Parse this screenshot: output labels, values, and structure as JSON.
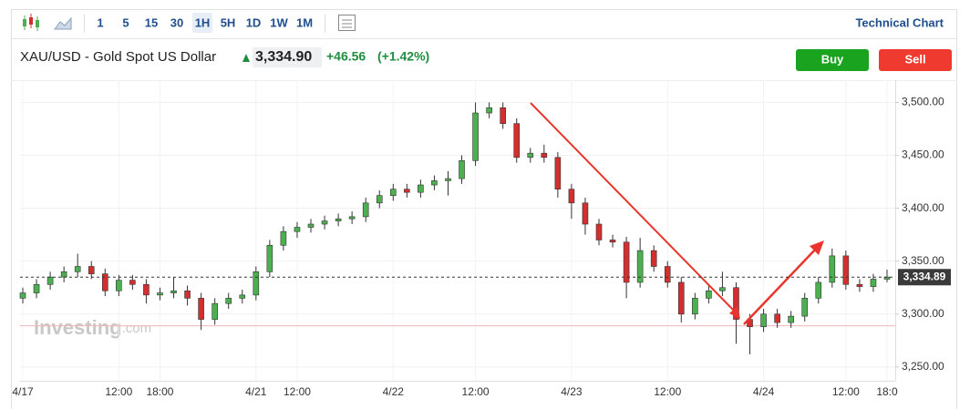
{
  "toolbar": {
    "intervals": [
      "1",
      "5",
      "15",
      "30",
      "1H",
      "5H",
      "1D",
      "1W",
      "1M"
    ],
    "active": "1H",
    "link": "Technical Chart"
  },
  "header": {
    "symbol": "XAU/USD - Gold Spot US Dollar",
    "price": "3,334.90",
    "change": "+46.56",
    "change_pct": "(+1.42%)"
  },
  "buttons": {
    "buy": "Buy",
    "sell": "Sell"
  },
  "watermark": {
    "brand": "Investing",
    "suffix": ".com"
  },
  "chart_data": {
    "type": "candlestick",
    "categories": [
      "4/17",
      null,
      null,
      null,
      null,
      null,
      null,
      "12:00",
      null,
      null,
      "18:00",
      null,
      null,
      null,
      null,
      null,
      null,
      "4/21",
      null,
      null,
      "12:00",
      null,
      null,
      null,
      null,
      null,
      null,
      "4/22",
      null,
      null,
      null,
      null,
      null,
      "12:00",
      null,
      null,
      null,
      null,
      null,
      null,
      "4/23",
      null,
      null,
      null,
      null,
      null,
      null,
      "12:00",
      null,
      null,
      null,
      null,
      null,
      null,
      "4/24",
      null,
      null,
      null,
      null,
      null,
      "12:00",
      null,
      null,
      "18:0"
    ],
    "open": [
      3315,
      3320,
      3328,
      3335,
      3340,
      3345,
      3338,
      3322,
      3332,
      3328,
      3318,
      3320,
      3322,
      3315,
      3295,
      3310,
      3315,
      3318,
      3340,
      3365,
      3378,
      3382,
      3385,
      3388,
      3390,
      3392,
      3405,
      3412,
      3418,
      3415,
      3422,
      3426,
      3428,
      3445,
      3490,
      3495,
      3480,
      3448,
      3452,
      3448,
      3418,
      3405,
      3385,
      3370,
      3368,
      3330,
      3360,
      3345,
      3330,
      3300,
      3315,
      3322,
      3325,
      3295,
      3288,
      3300,
      3292,
      3298,
      3315,
      3330,
      3355,
      3328,
      3326,
      3333
    ],
    "high": [
      3325,
      3333,
      3340,
      3345,
      3357,
      3350,
      3343,
      3337,
      3337,
      3333,
      3325,
      3335,
      3327,
      3320,
      3315,
      3320,
      3323,
      3345,
      3370,
      3383,
      3387,
      3390,
      3393,
      3395,
      3397,
      3410,
      3417,
      3423,
      3423,
      3427,
      3431,
      3435,
      3450,
      3500,
      3500,
      3500,
      3485,
      3457,
      3460,
      3453,
      3423,
      3410,
      3390,
      3375,
      3373,
      3372,
      3365,
      3350,
      3335,
      3320,
      3327,
      3340,
      3330,
      3300,
      3305,
      3305,
      3303,
      3320,
      3335,
      3362,
      3360,
      3333,
      3338,
      3342
    ],
    "low": [
      3310,
      3315,
      3323,
      3330,
      3335,
      3333,
      3317,
      3317,
      3323,
      3310,
      3313,
      3315,
      3308,
      3285,
      3290,
      3305,
      3310,
      3313,
      3335,
      3360,
      3372,
      3377,
      3380,
      3383,
      3385,
      3387,
      3400,
      3407,
      3410,
      3410,
      3417,
      3412,
      3423,
      3440,
      3485,
      3475,
      3443,
      3443,
      3443,
      3410,
      3390,
      3375,
      3365,
      3363,
      3315,
      3325,
      3340,
      3325,
      3292,
      3295,
      3310,
      3317,
      3272,
      3262,
      3283,
      3287,
      3287,
      3293,
      3310,
      3325,
      3323,
      3321,
      3321,
      3330
    ],
    "close": [
      3320,
      3328,
      3335,
      3340,
      3345,
      3338,
      3322,
      3332,
      3328,
      3318,
      3320,
      3322,
      3315,
      3295,
      3310,
      3315,
      3318,
      3340,
      3365,
      3378,
      3382,
      3385,
      3388,
      3390,
      3392,
      3405,
      3412,
      3418,
      3415,
      3422,
      3426,
      3428,
      3445,
      3490,
      3495,
      3480,
      3448,
      3452,
      3448,
      3418,
      3405,
      3385,
      3370,
      3368,
      3330,
      3360,
      3345,
      3330,
      3300,
      3315,
      3322,
      3325,
      3295,
      3288,
      3300,
      3292,
      3298,
      3315,
      3330,
      3355,
      3328,
      3326,
      3333,
      3335
    ],
    "up_color": "#4caf50",
    "down_color": "#d32f2f",
    "ylim": [
      3237,
      3521
    ],
    "yticks": [
      {
        "value": 3250,
        "label": "3,250.00"
      },
      {
        "value": 3300,
        "label": "3,300.00"
      },
      {
        "value": 3350,
        "label": "3,350.00"
      },
      {
        "value": 3400,
        "label": "3,400.00"
      },
      {
        "value": 3450,
        "label": "3,450.00"
      },
      {
        "value": 3500,
        "label": "3,500.00"
      }
    ],
    "last_price": {
      "value": 3334.89,
      "label": "3,334.89"
    },
    "reference_level": 3289
  }
}
